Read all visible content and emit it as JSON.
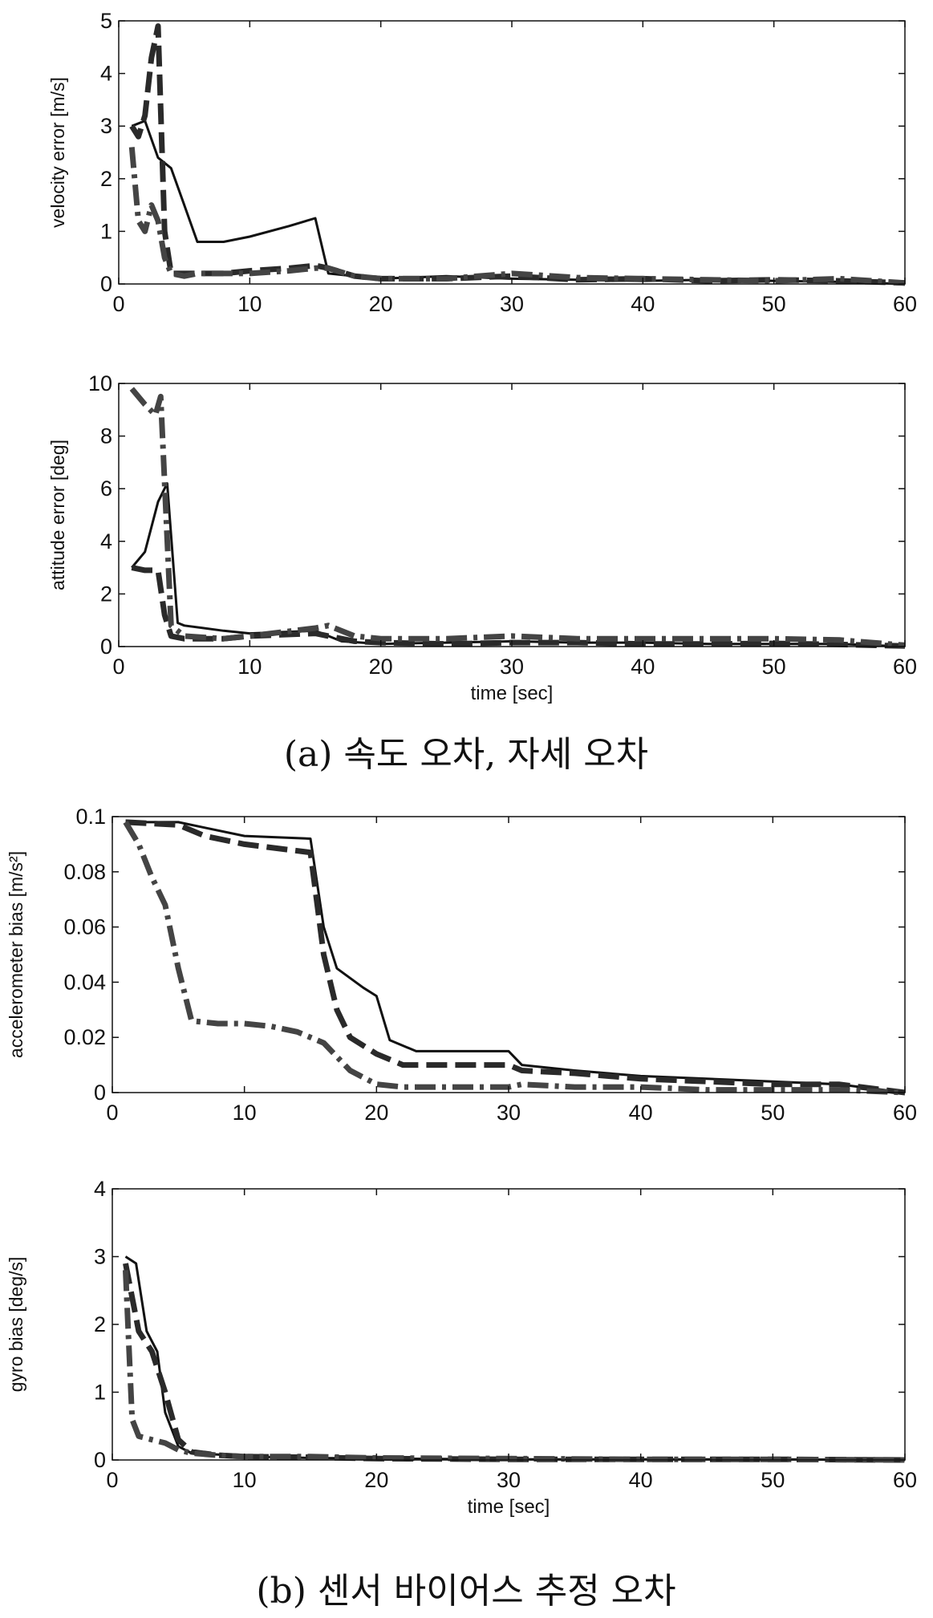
{
  "captions": {
    "a": "(a) 속도 오차, 자세 오차",
    "b": "(b) 센서 바이어스 추정 오차"
  },
  "colors": {
    "solid": "#111111",
    "dashed": "#2a2a2a",
    "dashdot": "#444444"
  },
  "chart_data": [
    {
      "type": "line",
      "title": "",
      "xlabel": "",
      "ylabel": "velocity error [m/s]",
      "xlim": [
        0,
        60
      ],
      "ylim": [
        0,
        5
      ],
      "xticks": [
        "0",
        "10",
        "20",
        "30",
        "40",
        "50",
        "60"
      ],
      "yticks": [
        "0",
        "1",
        "2",
        "3",
        "4",
        "5"
      ],
      "grid": false,
      "series": [
        {
          "style": "solid",
          "x": [
            1,
            2,
            3,
            4,
            5,
            6,
            8,
            10,
            13,
            15,
            16,
            18,
            20,
            25,
            30,
            35,
            40,
            45,
            50,
            55,
            60
          ],
          "y": [
            3.0,
            3.1,
            2.4,
            2.2,
            1.5,
            0.8,
            0.8,
            0.9,
            1.1,
            1.25,
            0.2,
            0.15,
            0.1,
            0.15,
            0.1,
            0.08,
            0.06,
            0.08,
            0.06,
            0.04,
            0.0
          ]
        },
        {
          "style": "dashed",
          "x": [
            1,
            1.5,
            2,
            2.5,
            3,
            3.5,
            4,
            5,
            6,
            8,
            10,
            13,
            15,
            16,
            18,
            20,
            25,
            30,
            35,
            40,
            45,
            50,
            55,
            60
          ],
          "y": [
            3.0,
            2.8,
            3.2,
            4.3,
            4.9,
            1.0,
            0.2,
            0.2,
            0.2,
            0.2,
            0.25,
            0.3,
            0.35,
            0.3,
            0.15,
            0.1,
            0.1,
            0.15,
            0.08,
            0.1,
            0.06,
            0.08,
            0.06,
            0.02
          ]
        },
        {
          "style": "dashdot",
          "x": [
            1,
            1.5,
            2,
            2.5,
            3,
            3.5,
            4,
            5,
            6,
            8,
            10,
            13,
            15,
            16,
            18,
            20,
            25,
            30,
            35,
            40,
            45,
            50,
            55,
            60
          ],
          "y": [
            2.6,
            1.2,
            1.0,
            1.5,
            1.2,
            0.5,
            0.2,
            0.15,
            0.2,
            0.2,
            0.2,
            0.25,
            0.3,
            0.3,
            0.15,
            0.1,
            0.1,
            0.2,
            0.12,
            0.1,
            0.08,
            0.06,
            0.1,
            0.02
          ]
        }
      ]
    },
    {
      "type": "line",
      "title": "",
      "xlabel": "time [sec]",
      "ylabel": "attitude error [deg]",
      "xlim": [
        0,
        60
      ],
      "ylim": [
        0,
        10
      ],
      "xticks": [
        "0",
        "10",
        "20",
        "30",
        "40",
        "50",
        "60"
      ],
      "yticks": [
        "0",
        "2",
        "4",
        "6",
        "8",
        "10"
      ],
      "grid": false,
      "series": [
        {
          "style": "solid",
          "x": [
            1,
            2,
            3,
            3.7,
            4.5,
            5,
            8,
            10,
            15,
            17,
            20,
            25,
            30,
            35,
            40,
            45,
            50,
            55,
            60
          ],
          "y": [
            3.0,
            3.6,
            5.5,
            6.2,
            0.9,
            0.8,
            0.6,
            0.5,
            0.6,
            0.2,
            0.1,
            0.15,
            0.2,
            0.15,
            0.15,
            0.1,
            0.1,
            0.1,
            0.0
          ]
        },
        {
          "style": "dashed",
          "x": [
            1,
            2,
            3,
            3.5,
            4,
            5,
            8,
            10,
            15,
            16,
            18,
            20,
            25,
            30,
            35,
            40,
            45,
            50,
            55,
            60
          ],
          "y": [
            3.0,
            2.9,
            2.9,
            1.2,
            0.4,
            0.3,
            0.3,
            0.4,
            0.5,
            0.4,
            0.2,
            0.15,
            0.1,
            0.15,
            0.15,
            0.1,
            0.1,
            0.12,
            0.08,
            0.02
          ]
        },
        {
          "style": "dashdot",
          "x": [
            1,
            2,
            2.8,
            3.2,
            4,
            5,
            8,
            10,
            15,
            16,
            18,
            20,
            25,
            30,
            35,
            40,
            45,
            50,
            55,
            60
          ],
          "y": [
            9.8,
            9.2,
            8.8,
            9.5,
            0.8,
            0.4,
            0.3,
            0.4,
            0.7,
            0.8,
            0.4,
            0.3,
            0.3,
            0.4,
            0.3,
            0.3,
            0.3,
            0.3,
            0.25,
            0.05
          ]
        }
      ]
    },
    {
      "type": "line",
      "title": "",
      "xlabel": "",
      "ylabel": "accelerometer bias [m/s²]",
      "xlim": [
        0,
        60
      ],
      "ylim": [
        0,
        0.1
      ],
      "xticks": [
        "0",
        "10",
        "20",
        "30",
        "40",
        "50",
        "60"
      ],
      "yticks": [
        "0",
        "0.02",
        "0.04",
        "0.06",
        "0.08",
        "0.1"
      ],
      "grid": false,
      "series": [
        {
          "style": "solid",
          "x": [
            1,
            5,
            7,
            10,
            15,
            16,
            17,
            19,
            20,
            21,
            23,
            30,
            31,
            35,
            40,
            45,
            50,
            55,
            60
          ],
          "y": [
            0.098,
            0.098,
            0.096,
            0.093,
            0.092,
            0.06,
            0.045,
            0.038,
            0.035,
            0.019,
            0.015,
            0.015,
            0.01,
            0.008,
            0.006,
            0.005,
            0.004,
            0.003,
            0.0
          ]
        },
        {
          "style": "dashed",
          "x": [
            1,
            5,
            7,
            10,
            15,
            16,
            17,
            18,
            20,
            22,
            30,
            31,
            35,
            40,
            45,
            50,
            55,
            60
          ],
          "y": [
            0.098,
            0.097,
            0.093,
            0.09,
            0.087,
            0.05,
            0.03,
            0.02,
            0.014,
            0.01,
            0.01,
            0.008,
            0.007,
            0.005,
            0.004,
            0.003,
            0.003,
            0.0
          ]
        },
        {
          "style": "dashdot",
          "x": [
            1,
            2,
            3,
            4,
            5,
            6,
            8,
            10,
            12,
            14,
            16,
            18,
            20,
            22,
            30,
            31,
            35,
            40,
            45,
            50,
            55,
            60
          ],
          "y": [
            0.098,
            0.09,
            0.078,
            0.068,
            0.045,
            0.026,
            0.025,
            0.025,
            0.024,
            0.022,
            0.018,
            0.008,
            0.003,
            0.002,
            0.002,
            0.003,
            0.002,
            0.002,
            0.001,
            0.001,
            0.001,
            0.0
          ]
        }
      ]
    },
    {
      "type": "line",
      "title": "",
      "xlabel": "time [sec]",
      "ylabel": "gyro bias [deg/s]",
      "xlim": [
        0,
        60
      ],
      "ylim": [
        0,
        4
      ],
      "xticks": [
        "0",
        "10",
        "20",
        "30",
        "40",
        "50",
        "60"
      ],
      "yticks": [
        "0",
        "1",
        "2",
        "3",
        "4"
      ],
      "grid": false,
      "series": [
        {
          "style": "solid",
          "x": [
            1,
            1.8,
            2.6,
            3.4,
            4,
            5,
            6,
            8,
            10,
            15,
            20,
            30,
            40,
            50,
            60
          ],
          "y": [
            3.0,
            2.9,
            1.9,
            1.6,
            0.7,
            0.2,
            0.1,
            0.08,
            0.05,
            0.03,
            0.02,
            0.01,
            0.01,
            0.01,
            0.0
          ]
        },
        {
          "style": "dashed",
          "x": [
            1,
            2,
            3,
            4,
            5,
            6,
            8,
            10,
            15,
            20,
            30,
            40,
            50,
            60
          ],
          "y": [
            2.9,
            1.9,
            1.6,
            1.0,
            0.3,
            0.12,
            0.07,
            0.05,
            0.04,
            0.02,
            0.01,
            0.01,
            0.01,
            0.0
          ]
        },
        {
          "style": "dashdot",
          "x": [
            1,
            1.5,
            2,
            3,
            4,
            5,
            6,
            8,
            10,
            15,
            20,
            30,
            40,
            50,
            60
          ],
          "y": [
            2.8,
            0.6,
            0.35,
            0.3,
            0.25,
            0.15,
            0.1,
            0.07,
            0.05,
            0.05,
            0.03,
            0.02,
            0.01,
            0.01,
            0.0
          ]
        }
      ]
    }
  ]
}
